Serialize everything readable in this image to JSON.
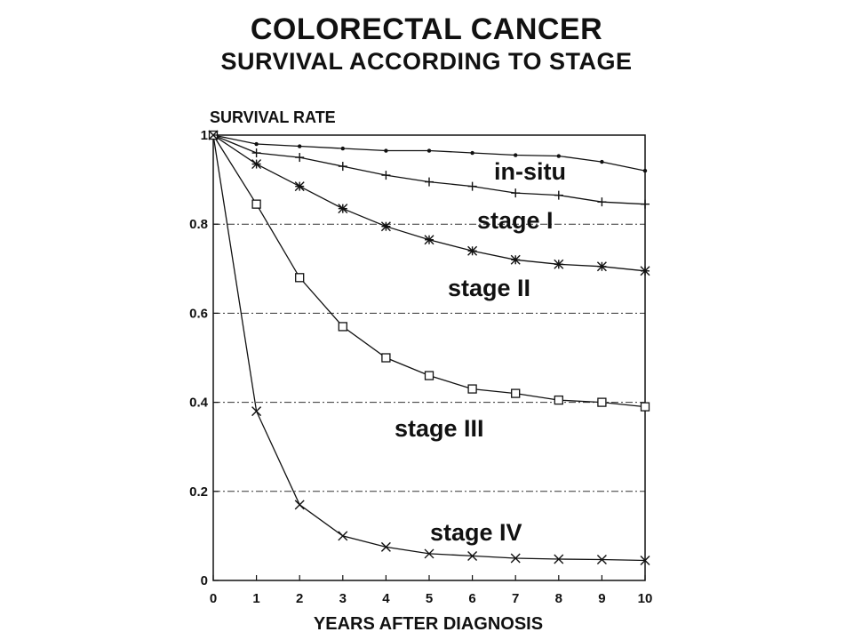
{
  "chart_data": {
    "type": "line",
    "title": "COLORECTAL CANCER",
    "subtitle": "SURVIVAL ACCORDING TO STAGE",
    "ylabel": "SURVIVAL RATE",
    "xlabel": "YEARS AFTER DIAGNOSIS",
    "xlim": [
      0,
      10
    ],
    "ylim": [
      0,
      1
    ],
    "x_ticks": [
      0,
      1,
      2,
      3,
      4,
      5,
      6,
      7,
      8,
      9,
      10
    ],
    "y_ticks": [
      0,
      0.2,
      0.4,
      0.6,
      0.8,
      1
    ],
    "y_tick_labels": [
      "0",
      "0.2",
      "0.4",
      "0.6",
      "0.8",
      "1"
    ],
    "grid": "dash-dot horizontal at 0.2 intervals",
    "legend": "none (labels placed on curves)",
    "x": [
      0,
      1,
      2,
      3,
      4,
      5,
      6,
      7,
      8,
      9,
      10
    ],
    "series": [
      {
        "name": "in-situ",
        "marker": "dot",
        "values": [
          1.0,
          0.98,
          0.975,
          0.97,
          0.965,
          0.965,
          0.96,
          0.955,
          0.953,
          0.94,
          0.92
        ]
      },
      {
        "name": "stage I",
        "marker": "plus",
        "values": [
          1.0,
          0.96,
          0.95,
          0.93,
          0.91,
          0.895,
          0.885,
          0.87,
          0.865,
          0.85,
          0.845
        ]
      },
      {
        "name": "stage II",
        "marker": "star",
        "values": [
          1.0,
          0.935,
          0.885,
          0.835,
          0.795,
          0.765,
          0.74,
          0.72,
          0.71,
          0.705,
          0.695
        ]
      },
      {
        "name": "stage III",
        "marker": "square",
        "values": [
          1.0,
          0.845,
          0.68,
          0.57,
          0.5,
          0.46,
          0.43,
          0.42,
          0.405,
          0.4,
          0.39
        ]
      },
      {
        "name": "stage IV",
        "marker": "x",
        "values": [
          1.0,
          0.38,
          0.17,
          0.1,
          0.075,
          0.06,
          0.055,
          0.05,
          0.048,
          0.047,
          0.045
        ]
      }
    ]
  }
}
